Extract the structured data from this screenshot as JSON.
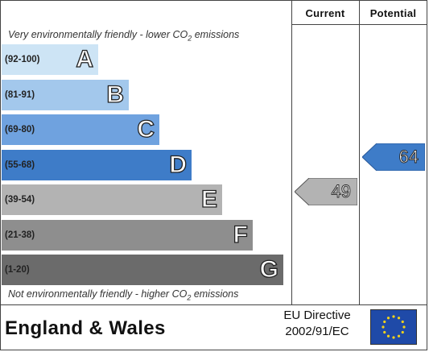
{
  "header": {
    "current_label": "Current",
    "potential_label": "Potential"
  },
  "notes": {
    "top_prefix": "Very environmentally friendly - lower CO",
    "top_sub": "2",
    "top_suffix": " emissions",
    "bottom_prefix": "Not environmentally friendly - higher CO",
    "bottom_sub": "2",
    "bottom_suffix": " emissions"
  },
  "bands": [
    {
      "range": "(92-100)",
      "letter": "A",
      "color": "#cde4f5"
    },
    {
      "range": "(81-91)",
      "letter": "B",
      "color": "#a3c8ec"
    },
    {
      "range": "(69-80)",
      "letter": "C",
      "color": "#6fa2df"
    },
    {
      "range": "(55-68)",
      "letter": "D",
      "color": "#3e7cc8"
    },
    {
      "range": "(39-54)",
      "letter": "E",
      "color": "#b3b3b3"
    },
    {
      "range": "(21-38)",
      "letter": "F",
      "color": "#8e8e8e"
    },
    {
      "range": "(1-20)",
      "letter": "G",
      "color": "#6b6b6b"
    }
  ],
  "ratings": {
    "current": {
      "value": "49",
      "color": "#b3b3b3"
    },
    "potential": {
      "value": "64",
      "color": "#3e7cc8"
    }
  },
  "footer": {
    "region": "England & Wales",
    "directive_line1": "EU Directive",
    "directive_line2": "2002/91/EC",
    "flag_color": "#1f4aa8",
    "star_color": "#f2d21b"
  }
}
